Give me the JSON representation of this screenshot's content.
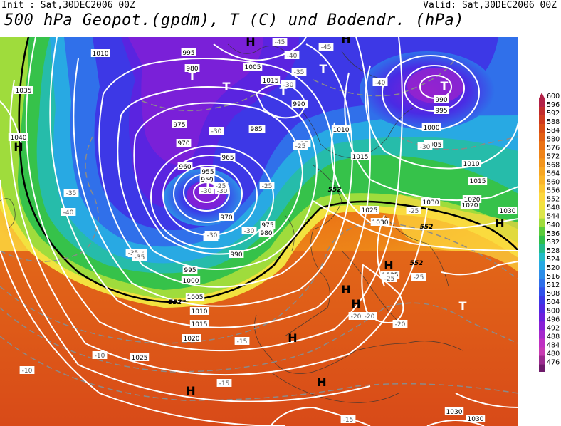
{
  "header": {
    "init": "Init : Sat,30DEC2006 00Z",
    "valid": "Valid: Sat,30DEC2006 00Z",
    "title": "500 hPa Geopot.(gpdm), T (C) und Bodendr. (hPa)"
  },
  "colorbar": {
    "levels": [
      "600",
      "596",
      "592",
      "588",
      "584",
      "580",
      "576",
      "572",
      "568",
      "564",
      "560",
      "556",
      "552",
      "548",
      "544",
      "540",
      "536",
      "532",
      "528",
      "524",
      "520",
      "516",
      "512",
      "508",
      "504",
      "500",
      "496",
      "492",
      "488",
      "484",
      "480",
      "476"
    ],
    "colors": [
      "#b22248",
      "#c12b2b",
      "#cf3a1e",
      "#da4d15",
      "#e35f13",
      "#ea7215",
      "#ef8419",
      "#f3951c",
      "#f7a622",
      "#fab52a",
      "#fcc733",
      "#fdd83e",
      "#f2e23f",
      "#dce64a",
      "#9fdc3c",
      "#5bcc3c",
      "#2fbf4a",
      "#22bb8a",
      "#23bcc6",
      "#28a9e3",
      "#2e8ee8",
      "#3070ea",
      "#3252ea",
      "#3d38e6",
      "#5228e2",
      "#6b1fdc",
      "#8820d6",
      "#a528cc",
      "#bf30c2",
      "#c83bb2",
      "#9b2a8e",
      "#6e1a6a"
    ]
  },
  "pressure_labels": [
    "1010",
    "1035",
    "1040",
    "995",
    "980",
    "1005",
    "1015",
    "990",
    "985",
    "975",
    "970",
    "965",
    "960",
    "955",
    "950",
    "980",
    "975",
    "970",
    "990",
    "995",
    "1000",
    "1005",
    "1010",
    "1015",
    "1020",
    "1025",
    "1030",
    "1025",
    "1030",
    "1035",
    "1010",
    "1015",
    "1020",
    "1030",
    "1000",
    "1005",
    "1010",
    "1015",
    "1020",
    "1030",
    "1030",
    "1030",
    "990",
    "995",
    "990",
    "985",
    "1040",
    "1005",
    "1000"
  ],
  "temperature_labels": [
    "-45",
    "-45",
    "-40",
    "-40",
    "-35",
    "-35",
    "-30",
    "-30",
    "-30",
    "-35",
    "-35",
    "-40",
    "-30",
    "-30",
    "-25",
    "-25",
    "-30",
    "-25",
    "-20",
    "-20",
    "-25",
    "-25",
    "-20",
    "-15",
    "-15",
    "-10",
    "-10",
    "-15",
    "-30",
    "-25",
    "-35",
    "-35",
    "-30",
    "-25",
    "-40"
  ],
  "contour_labels_552": [
    "552",
    "552",
    "552",
    "552",
    "552"
  ],
  "highs": [
    "H",
    "H",
    "H",
    "H",
    "H",
    "H",
    "H",
    "H",
    "H",
    "H"
  ],
  "lows": [
    "T",
    "T",
    "T",
    "T",
    "T",
    "T"
  ]
}
